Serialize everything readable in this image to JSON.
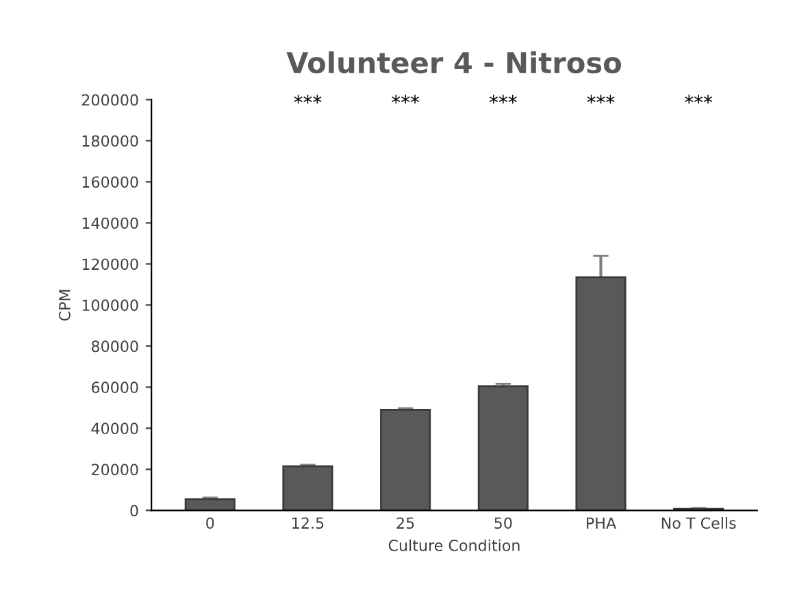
{
  "chart_data": {
    "type": "bar",
    "title": "Volunteer 4 - Nitroso",
    "xlabel": "Culture Condition",
    "ylabel": "CPM",
    "categories": [
      "0",
      "12.5",
      "25",
      "50",
      "PHA",
      "No T Cells"
    ],
    "values": [
      5500,
      21500,
      49000,
      60500,
      113500,
      700
    ],
    "errors": [
      700,
      700,
      700,
      1200,
      10500,
      400
    ],
    "color": "#595959",
    "ylim": [
      0,
      200000
    ],
    "yticks": [
      0,
      20000,
      40000,
      60000,
      80000,
      100000,
      120000,
      140000,
      160000,
      180000,
      200000
    ],
    "grid": false,
    "legend": false,
    "annotations": [
      "***",
      "***",
      "***",
      "***",
      "***"
    ]
  }
}
